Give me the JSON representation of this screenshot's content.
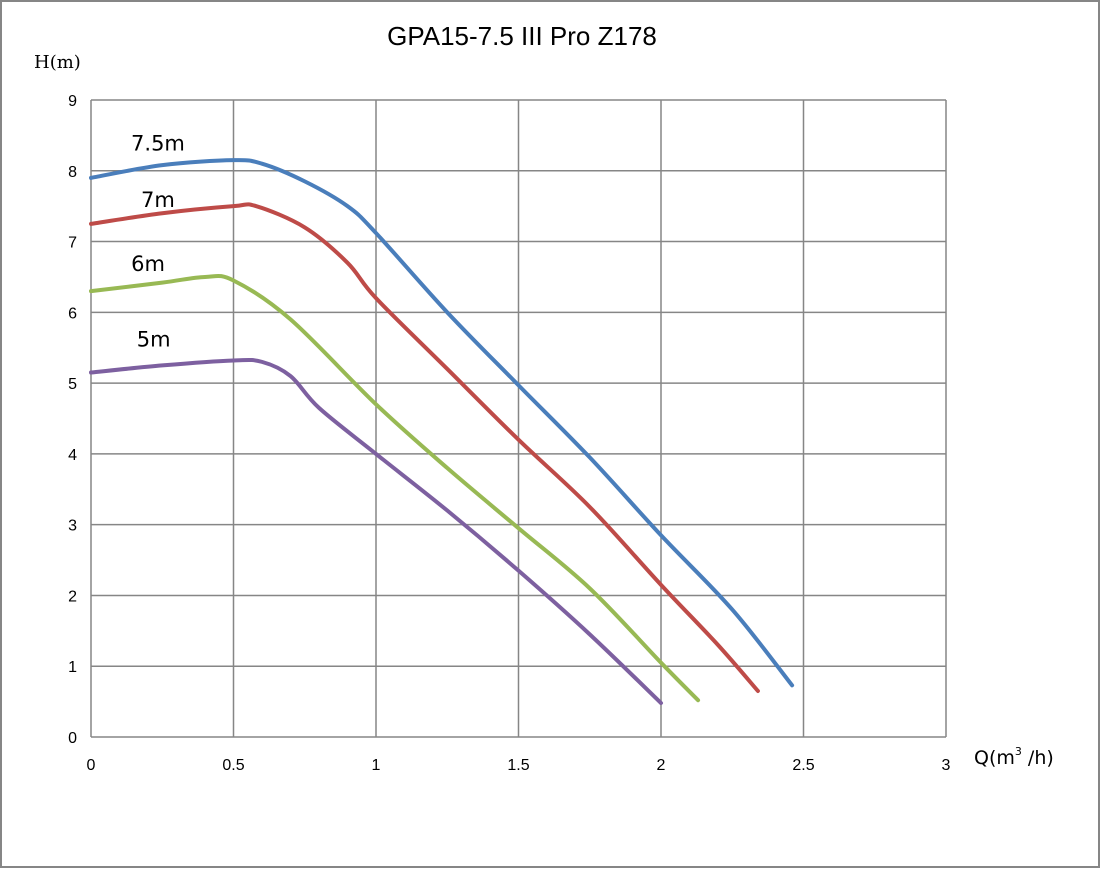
{
  "chart_data": {
    "type": "line",
    "title": "GPA15-7.5 III Pro Z178",
    "xlabel": "Q(m³/h)",
    "xlabel_parts": {
      "pre": "Q(m",
      "sup": "3",
      "post": " /h)"
    },
    "ylabel": "H(m)",
    "xlim": [
      0,
      3
    ],
    "ylim": [
      0,
      9
    ],
    "xticks": [
      "0",
      "0.5",
      "1",
      "1.5",
      "2",
      "2.5",
      "3"
    ],
    "yticks": [
      "0",
      "1",
      "2",
      "3",
      "4",
      "5",
      "6",
      "7",
      "8",
      "9"
    ],
    "grid": true,
    "legend": "none",
    "series": [
      {
        "name": "7.5m",
        "color": "#4a7ebb",
        "label_at": [
          0.235,
          8.4
        ],
        "x": [
          0,
          0.25,
          0.5,
          0.6,
          0.75,
          0.9,
          1.0,
          1.25,
          1.5,
          1.75,
          2.0,
          2.25,
          2.46
        ],
        "y": [
          7.9,
          8.08,
          8.15,
          8.1,
          7.85,
          7.5,
          7.12,
          6.0,
          4.97,
          3.95,
          2.85,
          1.8,
          0.73
        ]
      },
      {
        "name": "7m",
        "color": "#be4b48",
        "label_at": [
          0.235,
          7.6
        ],
        "x": [
          0,
          0.25,
          0.5,
          0.58,
          0.75,
          0.9,
          1.0,
          1.25,
          1.5,
          1.75,
          2.0,
          2.2,
          2.34
        ],
        "y": [
          7.25,
          7.4,
          7.5,
          7.5,
          7.2,
          6.7,
          6.2,
          5.2,
          4.2,
          3.25,
          2.15,
          1.3,
          0.65
        ]
      },
      {
        "name": "6m",
        "color": "#98b954",
        "label_at": [
          0.2,
          6.7
        ],
        "x": [
          0,
          0.25,
          0.4,
          0.5,
          0.7,
          1.0,
          1.25,
          1.5,
          1.75,
          2.0,
          2.13
        ],
        "y": [
          6.3,
          6.42,
          6.5,
          6.45,
          5.9,
          4.7,
          3.8,
          2.95,
          2.1,
          1.05,
          0.52
        ]
      },
      {
        "name": "5m",
        "color": "#7d60a0",
        "label_at": [
          0.22,
          5.63
        ],
        "x": [
          0,
          0.25,
          0.5,
          0.6,
          0.7,
          0.8,
          1.0,
          1.25,
          1.5,
          1.75,
          2.0
        ],
        "y": [
          5.15,
          5.25,
          5.32,
          5.3,
          5.1,
          4.65,
          4.0,
          3.2,
          2.35,
          1.45,
          0.48
        ]
      }
    ]
  }
}
